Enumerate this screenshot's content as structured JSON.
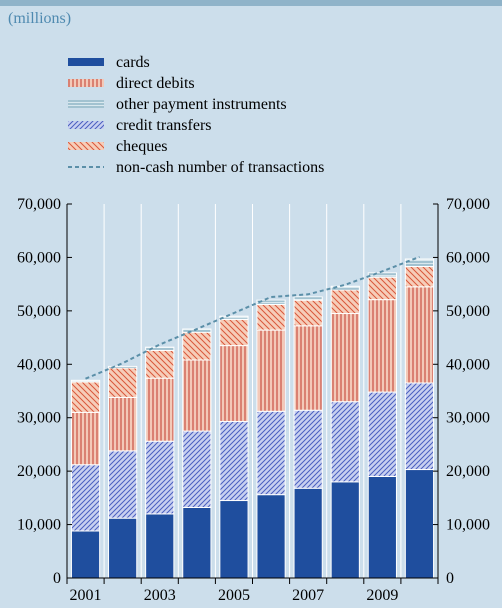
{
  "unit_label": "(millions)",
  "legend": [
    {
      "key": "cards",
      "label": "cards"
    },
    {
      "key": "direct_debits",
      "label": "direct debits"
    },
    {
      "key": "other",
      "label": "other payment instruments"
    },
    {
      "key": "credit_transfers",
      "label": "credit transfers"
    },
    {
      "key": "cheques",
      "label": "cheques"
    },
    {
      "key": "total",
      "label": "non-cash number of transactions"
    }
  ],
  "colors": {
    "background": "#ccdeeb",
    "cards": "#1f4e9e",
    "direct_debits_bg": "#f3c9b8",
    "direct_debits_line": "#c0392b",
    "other_bg": "#d9e8ee",
    "other_line": "#6b9cb2",
    "credit_transfers_bg": "#c8d0f0",
    "credit_transfers_line": "#4a5fc0",
    "cheques_bg": "#f6cdb9",
    "cheques_line": "#d9573a",
    "total_line": "#5b8fa8"
  },
  "chart_data": {
    "type": "bar",
    "stacked": true,
    "categories": [
      "2001",
      "2002",
      "2003",
      "2004",
      "2005",
      "2006",
      "2007",
      "2008",
      "2009",
      "2010"
    ],
    "x_tick_labels": [
      "2001",
      "",
      "2003",
      "",
      "2005",
      "",
      "2007",
      "",
      "2009",
      ""
    ],
    "series": [
      {
        "key": "cards",
        "name": "cards",
        "values": [
          8800,
          11200,
          12000,
          13200,
          14500,
          15600,
          16800,
          18000,
          19000,
          20300
        ]
      },
      {
        "key": "credit_transfers",
        "name": "credit transfers",
        "values": [
          12400,
          12600,
          13600,
          14300,
          14800,
          15600,
          14600,
          15000,
          15800,
          16200
        ]
      },
      {
        "key": "direct_debits",
        "name": "direct debits",
        "values": [
          9800,
          10000,
          11800,
          13300,
          14200,
          15200,
          15800,
          16500,
          17300,
          18000
        ]
      },
      {
        "key": "cheques",
        "name": "cheques",
        "values": [
          5700,
          5500,
          5200,
          5200,
          4900,
          4800,
          4800,
          4400,
          4200,
          3800
        ]
      },
      {
        "key": "other",
        "name": "other payment instruments",
        "values": [
          300,
          300,
          600,
          600,
          600,
          800,
          600,
          700,
          800,
          1400
        ]
      }
    ],
    "line_series": {
      "key": "total",
      "name": "non-cash number of transactions",
      "values": [
        37300,
        40200,
        43700,
        46600,
        49600,
        52600,
        53100,
        54900,
        57400,
        60100
      ]
    },
    "y_ticks": [
      0,
      10000,
      20000,
      30000,
      40000,
      50000,
      60000,
      70000
    ],
    "y_tick_labels": [
      "0",
      "10,000",
      "20,000",
      "30,000",
      "40,000",
      "50,000",
      "60,000",
      "70,000"
    ],
    "ylim": [
      0,
      70000
    ],
    "grid": "vertical",
    "legend_position": "top"
  }
}
